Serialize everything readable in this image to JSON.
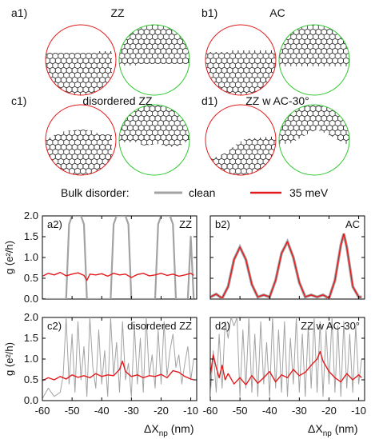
{
  "panels_top": [
    {
      "tag": "a1)",
      "title": "ZZ"
    },
    {
      "tag": "b1)",
      "title": "AC"
    },
    {
      "tag": "c1)",
      "title": "disordered ZZ"
    },
    {
      "tag": "d1)",
      "title": "ZZ w AC-30°"
    }
  ],
  "legend": {
    "prefix": "Bulk disorder:",
    "items": [
      {
        "label": "clean",
        "color": "#a3a3a3"
      },
      {
        "label": "35 meV",
        "color": "#e41a1c"
      }
    ]
  },
  "colors": {
    "clean": "#a3a3a3",
    "disorder": "#e41a1c",
    "left_circle": "#e41a1c",
    "right_circle": "#32c832",
    "lattice": "#222222"
  },
  "axis_labels": {
    "ylabel": "g (e²/h)",
    "xlabel_main": "ΔX",
    "xlabel_sub": "np",
    "xlabel_unit": " (nm)"
  },
  "chart_data": [
    {
      "type": "line",
      "tag": "a2)",
      "label": "ZZ",
      "xlim": [
        -60,
        -8
      ],
      "ylim": [
        0,
        2.0
      ],
      "yticks": [
        "2.0",
        "1.5",
        "1.0",
        "0.5",
        "0.0"
      ],
      "series": [
        {
          "name": "clean",
          "x": [
            -60,
            -52,
            -51,
            -50,
            -47,
            -46,
            -45,
            -37,
            -36,
            -35,
            -32,
            -31,
            -30,
            -22,
            -21,
            -20,
            -17,
            -16,
            -15,
            -11,
            -10,
            -9
          ],
          "y": [
            0.0,
            0.0,
            1.8,
            2.0,
            2.0,
            1.8,
            0.0,
            0.0,
            1.8,
            2.0,
            2.0,
            1.8,
            0.0,
            0.0,
            1.8,
            2.0,
            2.0,
            1.8,
            0.0,
            0.0,
            1.5,
            0.0
          ]
        },
        {
          "name": "35 meV",
          "x": [
            -60,
            -58,
            -56,
            -54,
            -52,
            -50,
            -48,
            -46,
            -45,
            -44,
            -42,
            -40,
            -38,
            -36,
            -34,
            -32,
            -30,
            -28,
            -26,
            -24,
            -22,
            -20,
            -18,
            -16,
            -14,
            -12,
            -10,
            -9
          ],
          "y": [
            0.55,
            0.62,
            0.58,
            0.64,
            0.56,
            0.6,
            0.63,
            0.57,
            0.45,
            0.6,
            0.58,
            0.61,
            0.55,
            0.62,
            0.58,
            0.6,
            0.52,
            0.59,
            0.62,
            0.56,
            0.58,
            0.62,
            0.57,
            0.6,
            0.55,
            0.58,
            0.62,
            0.57
          ]
        }
      ]
    },
    {
      "type": "line",
      "tag": "b2)",
      "label": "AC",
      "xlim": [
        -60,
        -8
      ],
      "ylim": [
        0,
        2.0
      ],
      "series": [
        {
          "name": "35 meV",
          "x": [
            -60,
            -58,
            -56,
            -54,
            -52,
            -50,
            -48,
            -46,
            -44,
            -42,
            -40,
            -38,
            -36,
            -34,
            -32,
            -30,
            -28,
            -26,
            -24,
            -22,
            -20,
            -18,
            -16,
            -15,
            -14,
            -12,
            -10,
            -9
          ],
          "y": [
            0.05,
            0.12,
            0.02,
            0.3,
            0.95,
            1.25,
            0.95,
            0.35,
            0.05,
            0.1,
            0.05,
            0.45,
            1.1,
            1.38,
            1.0,
            0.4,
            0.05,
            0.1,
            0.05,
            0.1,
            0.02,
            0.45,
            1.3,
            1.57,
            1.25,
            0.3,
            0.05,
            0.05
          ]
        }
      ]
    },
    {
      "type": "line",
      "tag": "c2)",
      "label": "disordered ZZ",
      "xlim": [
        -60,
        -8
      ],
      "ylim": [
        0,
        2.0
      ],
      "yticks": [
        "2.0",
        "1.5",
        "1.0",
        "0.5",
        "0.0"
      ],
      "series": [
        {
          "name": "clean",
          "x": [
            -60,
            -58,
            -56,
            -54,
            -53,
            -52,
            -51,
            -50,
            -49,
            -48,
            -47,
            -46,
            -45,
            -44,
            -43,
            -42,
            -41,
            -40,
            -39,
            -38,
            -37,
            -36,
            -35,
            -34,
            -33,
            -32,
            -31,
            -30,
            -29,
            -28,
            -27,
            -26,
            -25,
            -24,
            -23,
            -22,
            -21,
            -20,
            -19,
            -18,
            -17,
            -16,
            -15,
            -14,
            -13,
            -12,
            -11,
            -10,
            -9
          ],
          "y": [
            0.05,
            0.3,
            0.1,
            0.2,
            0.6,
            2.0,
            0.4,
            1.6,
            0.2,
            1.9,
            0.5,
            1.3,
            0.1,
            2.0,
            0.8,
            0.3,
            1.7,
            0.4,
            1.2,
            0.1,
            2.0,
            0.6,
            1.4,
            0.2,
            1.9,
            0.5,
            0.9,
            0.1,
            1.8,
            0.4,
            1.5,
            0.2,
            2.0,
            0.6,
            1.1,
            0.3,
            1.7,
            0.4,
            1.9,
            0.6,
            1.2,
            1.6,
            0.8,
            1.1,
            0.4,
            0.9,
            1.3,
            0.5,
            1.0
          ]
        },
        {
          "name": "35 meV",
          "x": [
            -60,
            -58,
            -56,
            -54,
            -52,
            -50,
            -48,
            -46,
            -44,
            -42,
            -40,
            -38,
            -36,
            -34,
            -33,
            -32,
            -30,
            -28,
            -26,
            -24,
            -22,
            -20,
            -18,
            -16,
            -14,
            -12,
            -10,
            -9
          ],
          "y": [
            0.48,
            0.55,
            0.5,
            0.58,
            0.52,
            0.62,
            0.56,
            0.6,
            0.55,
            0.65,
            0.58,
            0.62,
            0.6,
            0.75,
            0.95,
            0.7,
            0.58,
            0.62,
            0.55,
            0.6,
            0.58,
            0.63,
            0.55,
            0.72,
            0.68,
            0.58,
            0.52,
            0.5
          ]
        }
      ]
    },
    {
      "type": "line",
      "tag": "d2)",
      "label": "ZZ w AC-30°",
      "xlim": [
        -60,
        -8
      ],
      "ylim": [
        0,
        2.0
      ],
      "series": [
        {
          "name": "clean",
          "x": [
            -60,
            -59,
            -58,
            -57,
            -56,
            -55,
            -54,
            -53,
            -52,
            -51,
            -50,
            -49,
            -48,
            -47,
            -46,
            -45,
            -44,
            -43,
            -42,
            -41,
            -40,
            -39,
            -38,
            -37,
            -36,
            -35,
            -34,
            -33,
            -32,
            -31,
            -30,
            -29,
            -28,
            -27,
            -26,
            -25,
            -24,
            -23,
            -22,
            -21,
            -20,
            -19,
            -18,
            -17,
            -16,
            -15,
            -14,
            -13,
            -12,
            -11,
            -10,
            -9
          ],
          "y": [
            0.1,
            1.2,
            0.2,
            1.6,
            0.3,
            1.9,
            1.5,
            2.0,
            1.8,
            2.0,
            0.1,
            1.7,
            0.3,
            2.0,
            0.2,
            1.6,
            0.1,
            1.9,
            0.4,
            1.4,
            0.1,
            2.0,
            0.3,
            1.7,
            0.2,
            1.9,
            0.1,
            1.5,
            0.4,
            2.0,
            0.2,
            1.6,
            0.1,
            1.8,
            0.3,
            2.0,
            0.2,
            1.9,
            0.1,
            1.7,
            0.4,
            2.0,
            0.2,
            1.8,
            0.1,
            1.9,
            0.3,
            1.6,
            0.2,
            1.8,
            0.4,
            1.0
          ]
        },
        {
          "name": "35 meV",
          "x": [
            -60,
            -59,
            -58,
            -57,
            -56,
            -55,
            -54,
            -52,
            -50,
            -48,
            -46,
            -44,
            -42,
            -40,
            -38,
            -36,
            -34,
            -32,
            -30,
            -28,
            -26,
            -24,
            -23,
            -22,
            -20,
            -18,
            -16,
            -14,
            -12,
            -10,
            -9
          ],
          "y": [
            0.6,
            1.1,
            0.8,
            0.55,
            0.85,
            0.5,
            0.65,
            0.4,
            0.55,
            0.38,
            0.6,
            0.42,
            0.55,
            0.7,
            0.45,
            0.62,
            0.55,
            0.75,
            0.6,
            0.68,
            0.85,
            1.0,
            1.18,
            0.95,
            0.7,
            0.55,
            0.45,
            0.65,
            0.5,
            0.62,
            0.55
          ]
        }
      ]
    }
  ],
  "xticks": [
    "-60",
    "-50",
    "-40",
    "-30",
    "-20",
    "-10"
  ]
}
